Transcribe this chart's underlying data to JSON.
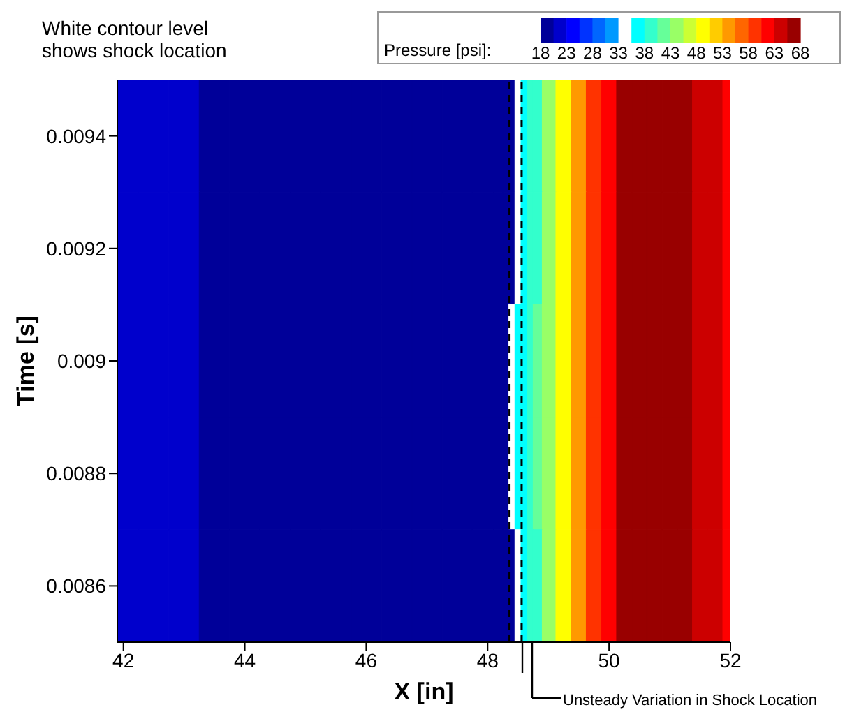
{
  "chart_data": {
    "type": "heatmap",
    "title": "White contour level shows shock location",
    "xlabel": "X [in]",
    "ylabel": "Time [s]",
    "clabel": "Pressure [psi]:",
    "x": [
      42,
      42.5,
      43,
      43.5,
      44,
      44.5,
      45,
      45.5,
      46,
      46.5,
      47,
      47.5,
      48,
      48.2,
      48.3,
      48.4,
      48.5,
      48.6,
      48.7,
      48.8,
      49,
      49.25,
      49.5,
      49.75,
      50,
      50.25,
      50.5,
      50.75,
      51,
      51.25,
      51.5,
      51.75,
      52
    ],
    "y_categories": [
      "0.0094",
      "0.0092",
      "0.009",
      "0.0088",
      "0.0086"
    ],
    "cells": [
      [
        21,
        21,
        21,
        20,
        20,
        20,
        20,
        19,
        19,
        19,
        19,
        19,
        19,
        19,
        19,
        20,
        34,
        36,
        38,
        40,
        45,
        49,
        53,
        58,
        62,
        66,
        68,
        68,
        67,
        66,
        64,
        63,
        62
      ],
      [
        21,
        21,
        21,
        20,
        20,
        20,
        20,
        19,
        19,
        19,
        19,
        19,
        19,
        19,
        19,
        20,
        34,
        36,
        38,
        40,
        45,
        49,
        53,
        58,
        62,
        66,
        68,
        68,
        67,
        66,
        64,
        63,
        62
      ],
      [
        21,
        21,
        21,
        20,
        20,
        20,
        20,
        19,
        19,
        19,
        19,
        19,
        19,
        19,
        19,
        34,
        36,
        37,
        39,
        41,
        45,
        49,
        53,
        58,
        62,
        66,
        68,
        68,
        67,
        66,
        64,
        63,
        62
      ],
      [
        21,
        21,
        21,
        20,
        20,
        20,
        20,
        19,
        19,
        19,
        19,
        19,
        19,
        19,
        19,
        34,
        36,
        37,
        39,
        41,
        45,
        49,
        53,
        58,
        62,
        66,
        68,
        68,
        67,
        66,
        64,
        63,
        62
      ],
      [
        21,
        21,
        21,
        20,
        20,
        20,
        20,
        19,
        19,
        19,
        19,
        19,
        19,
        19,
        19,
        20,
        34,
        36,
        38,
        40,
        45,
        49,
        53,
        58,
        62,
        66,
        68,
        68,
        67,
        66,
        64,
        63,
        62
      ]
    ],
    "ref_lines": [
      {
        "axis": "x",
        "value": 48.36,
        "color": "#000000",
        "line_style": "dashed"
      },
      {
        "axis": "x",
        "value": 48.56,
        "color": "#000000",
        "line_style": "dashed"
      }
    ],
    "annotations": [
      "Unsteady Variation in Shock Location"
    ],
    "clim": [
      18,
      68
    ],
    "cticks": [
      18,
      23,
      28,
      33,
      38,
      43,
      48,
      53,
      58,
      63,
      68
    ],
    "xlim": [
      41.9,
      52
    ],
    "xticks": [
      42,
      44,
      46,
      48,
      50,
      52
    ]
  }
}
